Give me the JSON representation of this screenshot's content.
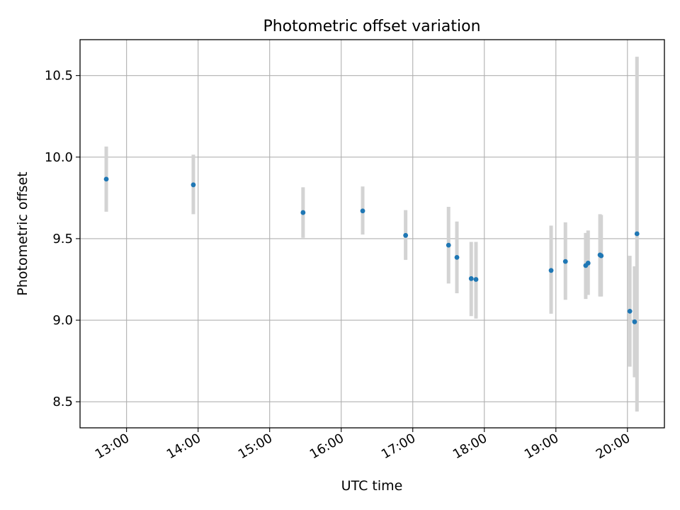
{
  "chart_data": {
    "type": "scatter",
    "title": "Photometric offset variation",
    "xlabel": "UTC time",
    "ylabel": "Photometric offset",
    "x_ticks": [
      "13:00",
      "14:00",
      "15:00",
      "16:00",
      "17:00",
      "18:00",
      "19:00",
      "20:00"
    ],
    "y_ticks": [
      "8.5",
      "9.0",
      "9.5",
      "10.0",
      "10.5"
    ],
    "xlim": [
      "12:21",
      "20:31"
    ],
    "ylim": [
      8.34,
      10.72
    ],
    "grid": true,
    "marker_color": "#1f77b4",
    "errorbar_color": "#d3d3d3",
    "points": [
      {
        "x": "12:43",
        "y": 9.865,
        "err_low": 9.665,
        "err_high": 10.065
      },
      {
        "x": "13:56",
        "y": 9.83,
        "err_low": 9.65,
        "err_high": 10.015
      },
      {
        "x": "15:28",
        "y": 9.66,
        "err_low": 9.505,
        "err_high": 9.815
      },
      {
        "x": "16:18",
        "y": 9.67,
        "err_low": 9.525,
        "err_high": 9.82
      },
      {
        "x": "16:54",
        "y": 9.52,
        "err_low": 9.37,
        "err_high": 9.675
      },
      {
        "x": "17:30",
        "y": 9.46,
        "err_low": 9.225,
        "err_high": 9.695
      },
      {
        "x": "17:37",
        "y": 9.385,
        "err_low": 9.165,
        "err_high": 9.605
      },
      {
        "x": "17:49",
        "y": 9.255,
        "err_low": 9.025,
        "err_high": 9.48
      },
      {
        "x": "17:53",
        "y": 9.25,
        "err_low": 9.01,
        "err_high": 9.48
      },
      {
        "x": "18:56",
        "y": 9.305,
        "err_low": 9.04,
        "err_high": 9.58
      },
      {
        "x": "19:08",
        "y": 9.36,
        "err_low": 9.125,
        "err_high": 9.6
      },
      {
        "x": "19:25",
        "y": 9.335,
        "err_low": 9.13,
        "err_high": 9.535
      },
      {
        "x": "19:27",
        "y": 9.35,
        "err_low": 9.155,
        "err_high": 9.55
      },
      {
        "x": "19:37",
        "y": 9.4,
        "err_low": 9.145,
        "err_high": 9.65
      },
      {
        "x": "19:38",
        "y": 9.395,
        "err_low": 9.145,
        "err_high": 9.645
      },
      {
        "x": "20:02",
        "y": 9.055,
        "err_low": 8.715,
        "err_high": 9.395
      },
      {
        "x": "20:06",
        "y": 8.99,
        "err_low": 8.65,
        "err_high": 9.33
      },
      {
        "x": "20:08",
        "y": 9.53,
        "err_low": 8.44,
        "err_high": 10.615
      }
    ]
  }
}
